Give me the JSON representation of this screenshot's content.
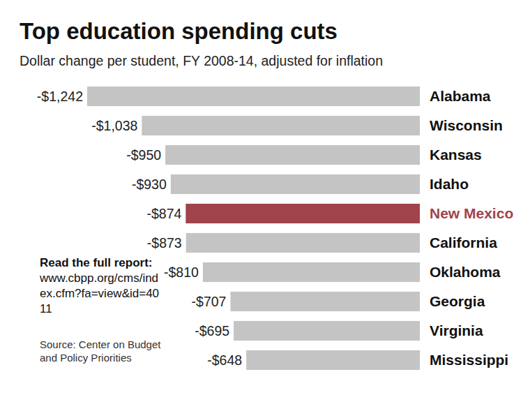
{
  "chart_data": {
    "type": "bar",
    "orientation": "horizontal",
    "title": "Top education spending cuts",
    "subtitle": "Dollar change per student, FY 2008-14, adjusted for inflation",
    "categories": [
      "Alabama",
      "Wisconsin",
      "Kansas",
      "Idaho",
      "New Mexico",
      "California",
      "Oklahoma",
      "Georgia",
      "Virginia",
      "Mississippi"
    ],
    "values": [
      -1242,
      -1038,
      -950,
      -930,
      -874,
      -873,
      -810,
      -707,
      -695,
      -648
    ],
    "value_labels": [
      "-$1,242",
      "-$1,038",
      "-$950",
      "-$930",
      "-$874",
      "-$873",
      "-$810",
      "-$707",
      "-$695",
      "-$648"
    ],
    "colors": [
      "#c4c4c4",
      "#c4c4c4",
      "#c4c4c4",
      "#c4c4c4",
      "#a0434b",
      "#c4c4c4",
      "#c4c4c4",
      "#c4c4c4",
      "#c4c4c4",
      "#c4c4c4"
    ],
    "data_labels": true,
    "tick_labels": "y",
    "grid": false,
    "annotations": [
      "Read the full report:",
      "www.cbpp.org/cms/index.cfm?fa=view&id=4011",
      "Source: Center on Budget and Policy Priorities"
    ]
  }
}
